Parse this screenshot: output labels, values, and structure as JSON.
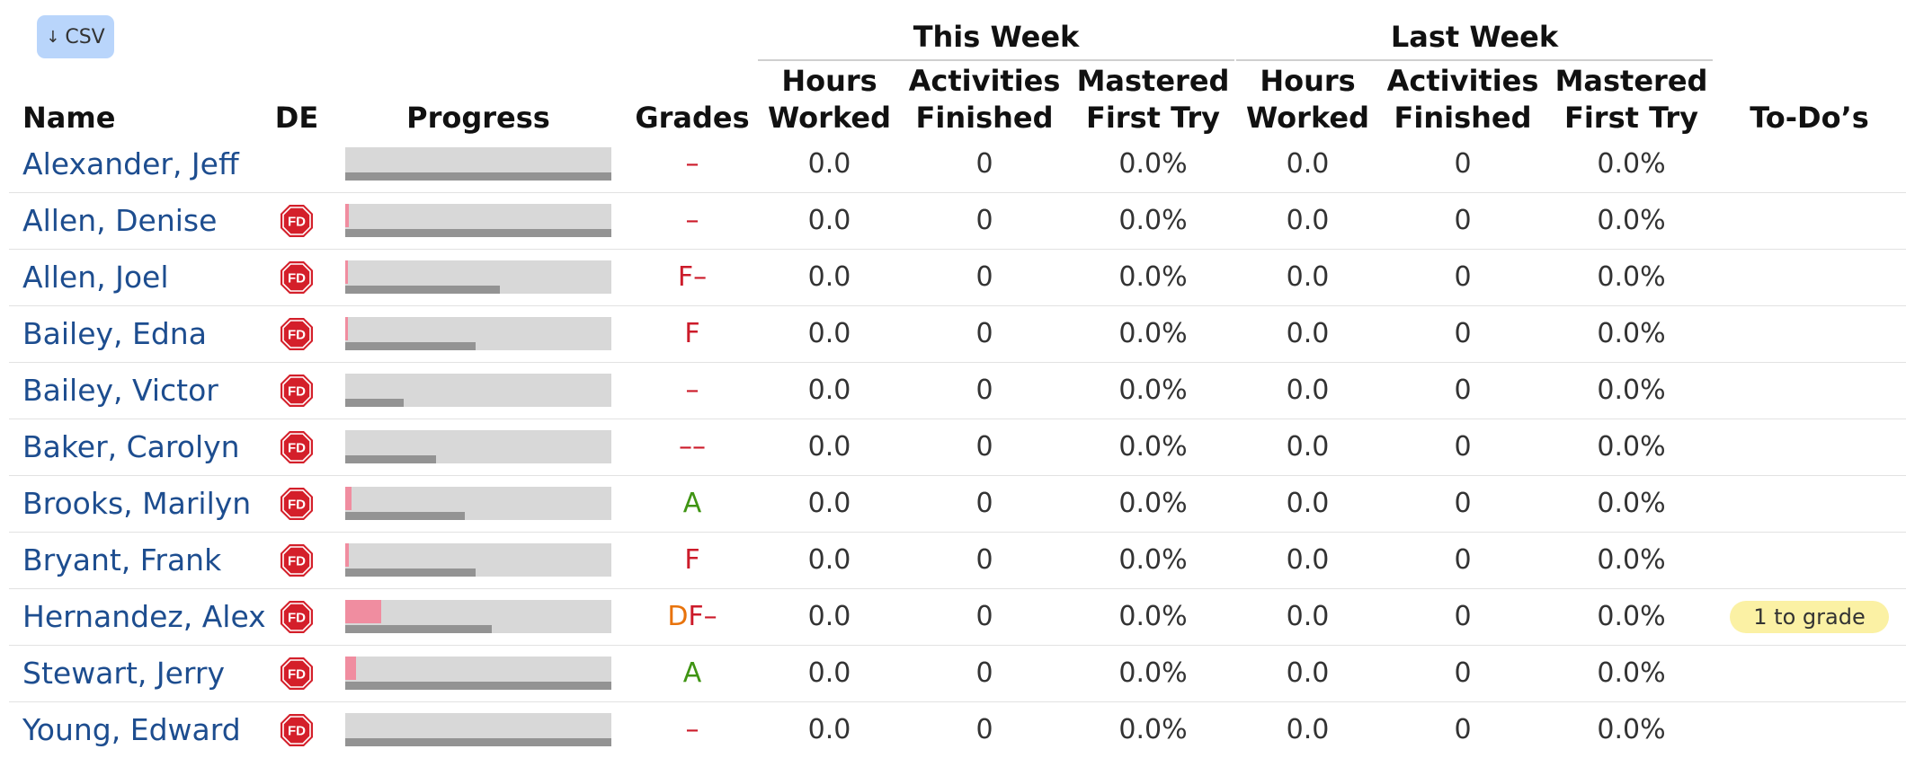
{
  "toolbar": {
    "csv_arrow": "↓",
    "csv_label": "CSV"
  },
  "groups": {
    "this_week": "This Week",
    "last_week": "Last Week"
  },
  "headers": {
    "name": "Name",
    "de": "DE",
    "progress": "Progress",
    "grades": "Grades",
    "tw_hours": [
      "Hours",
      "Worked"
    ],
    "tw_activities": [
      "Activities",
      "Finished"
    ],
    "tw_mastered": [
      "Mastered",
      "First Try"
    ],
    "lw_hours": [
      "Hours",
      "Worked"
    ],
    "lw_activities": [
      "Activities",
      "Finished"
    ],
    "lw_mastered": [
      "Mastered",
      "First Try"
    ],
    "todos": "To-Do’s"
  },
  "colors": {
    "name_link": "#1d4d8f",
    "grade_red": "#cc1b2a",
    "grade_green": "#3f9413",
    "grade_orange": "#e8730c",
    "csv_button": "#b9d5fb",
    "todo_badge": "#fbf1a4",
    "fd_badge": "#d41f2a"
  },
  "badge_label": "FD",
  "students": [
    {
      "name": "Alexander, Jeff",
      "fd": false,
      "progress_pink": 0.0,
      "progress_gray": 1.0,
      "grade": [
        {
          "t": "–",
          "c": "red"
        }
      ],
      "tw_hours": "0.0",
      "tw_activities": "0",
      "tw_mastered": "0.0%",
      "lw_hours": "0.0",
      "lw_activities": "0",
      "lw_mastered": "0.0%",
      "todo": ""
    },
    {
      "name": "Allen, Denise",
      "fd": true,
      "progress_pink": 0.015,
      "progress_gray": 1.0,
      "grade": [
        {
          "t": "–",
          "c": "red"
        }
      ],
      "tw_hours": "0.0",
      "tw_activities": "0",
      "tw_mastered": "0.0%",
      "lw_hours": "0.0",
      "lw_activities": "0",
      "lw_mastered": "0.0%",
      "todo": ""
    },
    {
      "name": "Allen, Joel",
      "fd": true,
      "progress_pink": 0.01,
      "progress_gray": 0.58,
      "grade": [
        {
          "t": "F–",
          "c": "red"
        }
      ],
      "tw_hours": "0.0",
      "tw_activities": "0",
      "tw_mastered": "0.0%",
      "lw_hours": "0.0",
      "lw_activities": "0",
      "lw_mastered": "0.0%",
      "todo": ""
    },
    {
      "name": "Bailey, Edna",
      "fd": true,
      "progress_pink": 0.01,
      "progress_gray": 0.49,
      "grade": [
        {
          "t": "F",
          "c": "red"
        }
      ],
      "tw_hours": "0.0",
      "tw_activities": "0",
      "tw_mastered": "0.0%",
      "lw_hours": "0.0",
      "lw_activities": "0",
      "lw_mastered": "0.0%",
      "todo": ""
    },
    {
      "name": "Bailey, Victor",
      "fd": true,
      "progress_pink": 0.0,
      "progress_gray": 0.22,
      "grade": [
        {
          "t": "–",
          "c": "red"
        }
      ],
      "tw_hours": "0.0",
      "tw_activities": "0",
      "tw_mastered": "0.0%",
      "lw_hours": "0.0",
      "lw_activities": "0",
      "lw_mastered": "0.0%",
      "todo": ""
    },
    {
      "name": "Baker, Carolyn",
      "fd": true,
      "progress_pink": 0.0,
      "progress_gray": 0.34,
      "grade": [
        {
          "t": "––",
          "c": "red"
        }
      ],
      "tw_hours": "0.0",
      "tw_activities": "0",
      "tw_mastered": "0.0%",
      "lw_hours": "0.0",
      "lw_activities": "0",
      "lw_mastered": "0.0%",
      "todo": ""
    },
    {
      "name": "Brooks, Marilyn",
      "fd": true,
      "progress_pink": 0.025,
      "progress_gray": 0.45,
      "grade": [
        {
          "t": "A",
          "c": "green"
        }
      ],
      "tw_hours": "0.0",
      "tw_activities": "0",
      "tw_mastered": "0.0%",
      "lw_hours": "0.0",
      "lw_activities": "0",
      "lw_mastered": "0.0%",
      "todo": ""
    },
    {
      "name": "Bryant, Frank",
      "fd": true,
      "progress_pink": 0.015,
      "progress_gray": 0.49,
      "grade": [
        {
          "t": "F",
          "c": "red"
        }
      ],
      "tw_hours": "0.0",
      "tw_activities": "0",
      "tw_mastered": "0.0%",
      "lw_hours": "0.0",
      "lw_activities": "0",
      "lw_mastered": "0.0%",
      "todo": ""
    },
    {
      "name": "Hernandez, Alex",
      "fd": true,
      "progress_pink": 0.135,
      "progress_gray": 0.55,
      "grade": [
        {
          "t": "D",
          "c": "orange"
        },
        {
          "t": "F–",
          "c": "red"
        }
      ],
      "tw_hours": "0.0",
      "tw_activities": "0",
      "tw_mastered": "0.0%",
      "lw_hours": "0.0",
      "lw_activities": "0",
      "lw_mastered": "0.0%",
      "todo": "1 to grade"
    },
    {
      "name": "Stewart, Jerry",
      "fd": true,
      "progress_pink": 0.04,
      "progress_gray": 1.0,
      "grade": [
        {
          "t": "A",
          "c": "green"
        }
      ],
      "tw_hours": "0.0",
      "tw_activities": "0",
      "tw_mastered": "0.0%",
      "lw_hours": "0.0",
      "lw_activities": "0",
      "lw_mastered": "0.0%",
      "todo": ""
    },
    {
      "name": "Young, Edward",
      "fd": true,
      "progress_pink": 0.0,
      "progress_gray": 1.0,
      "grade": [
        {
          "t": "–",
          "c": "red"
        }
      ],
      "tw_hours": "0.0",
      "tw_activities": "0",
      "tw_mastered": "0.0%",
      "lw_hours": "0.0",
      "lw_activities": "0",
      "lw_mastered": "0.0%",
      "todo": ""
    }
  ]
}
